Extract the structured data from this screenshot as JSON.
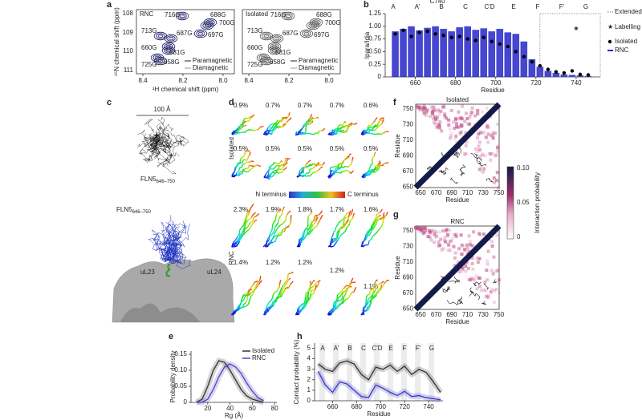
{
  "panel_labels": [
    "a",
    "b",
    "c",
    "d",
    "e",
    "f",
    "g",
    "h"
  ],
  "nmr": {
    "y_label": "¹⁵N chemical shift (ppm)",
    "x_label": "¹H chemical shift (ppm)",
    "y_ticks": [
      "108",
      "109",
      "110",
      "111"
    ],
    "legend": [
      "Paramagnetic",
      "Diamagnetic"
    ],
    "spectra": [
      {
        "title": "RNC",
        "x_ticks": [
          "8.4",
          "8.2",
          "8.0"
        ],
        "peaks": [
          "716G",
          "688G",
          "700G",
          "713G",
          "687G",
          "697G",
          "660G",
          "681G",
          "725G",
          "658G"
        ]
      },
      {
        "title": "Isolated",
        "x_ticks": [
          "8.4",
          "8.2",
          "8.0"
        ],
        "peaks": [
          "716G",
          "688G",
          "700G",
          "713G",
          "687G",
          "697G",
          "660G",
          "681G",
          "725G",
          "658G"
        ]
      }
    ]
  },
  "structure": {
    "scale": "100 Å",
    "name": "FLN5",
    "range": "646–750",
    "proteins": [
      "uL23",
      "uL24"
    ]
  },
  "ensembles": {
    "labels": [
      "Isolated",
      "RNC"
    ],
    "n_term": "N terminus",
    "c_term": "C terminus",
    "isolated_pct": [
      "0.9%",
      "0.7%",
      "0.7%",
      "0.7%",
      "0.6%",
      "0.5%",
      "0.5%",
      "0.5%",
      "0.5%",
      "0.5%"
    ],
    "rnc_pct": [
      "2.3%",
      "1.9%",
      "1.8%",
      "1.7%",
      "1.6%",
      "1.4%",
      "1.2%",
      "1.2%",
      "1.2%",
      "1.1%"
    ]
  },
  "maps": {
    "titles": [
      "Isolated",
      "RNC"
    ],
    "x_ticks": [
      "650",
      "670",
      "690",
      "710",
      "730",
      "750"
    ],
    "y_ticks": [
      "750",
      "730",
      "710",
      "690",
      "670",
      "650"
    ],
    "axis_label": "Residue",
    "colorbar": {
      "label": "Interaction probability",
      "ticks": [
        "0.10",
        "0.05",
        "0"
      ]
    }
  },
  "chart_data": [
    {
      "type": "bar",
      "x_label": "Residue",
      "y_label": "Ipara/Idia",
      "regions": [
        "A",
        "A'",
        "B",
        "C",
        "C'D",
        "E",
        "F",
        "F'",
        "G"
      ],
      "labelling_site": "C740",
      "legend": [
        "Extended peptide",
        "Labelling site"
      ],
      "x": [
        650,
        654,
        658,
        662,
        666,
        670,
        674,
        678,
        682,
        686,
        690,
        694,
        698,
        702,
        706,
        710,
        714,
        718,
        722,
        726,
        730,
        734,
        738,
        742,
        746
      ],
      "series": [
        {
          "name": "RNC",
          "type": "bar",
          "color": "#2626c8",
          "values": [
            0.9,
            0.95,
            1.0,
            0.92,
            0.97,
            1.0,
            0.95,
            0.9,
            0.98,
            1.0,
            0.93,
            0.96,
            0.9,
            0.95,
            0.88,
            0.85,
            0.7,
            0.35,
            0.2,
            0.12,
            0.08,
            0.05,
            0.04,
            0.03,
            0.02
          ]
        },
        {
          "name": "Isolated",
          "type": "scatter",
          "color": "#000000",
          "values": [
            0.85,
            0.92,
            0.8,
            0.88,
            0.9,
            0.85,
            0.82,
            0.78,
            0.8,
            0.75,
            0.72,
            0.78,
            0.7,
            0.65,
            0.6,
            0.5,
            0.4,
            0.3,
            0.22,
            0.15,
            0.1,
            0.08,
            0.12,
            0.05,
            0.04
          ]
        }
      ],
      "xlim": [
        645,
        752
      ],
      "xticks": [
        660,
        680,
        700,
        720,
        740
      ],
      "ylim": [
        0,
        1.25
      ],
      "yticks": [
        0,
        0.25,
        {
          "value": 0.5,
          "label": "0.50"
        },
        0.75,
        {
          "value": 1,
          "label": "1.00"
        },
        1.25
      ]
    },
    {
      "type": "line",
      "x_label": "Rg (Å)",
      "y_label": "Probability density",
      "x": [
        10,
        15,
        20,
        25,
        30,
        35,
        40,
        45,
        50,
        55,
        60,
        65,
        70
      ],
      "series": [
        {
          "name": "Isolated",
          "color": "#333333",
          "values": [
            0,
            0.01,
            0.05,
            0.1,
            0.13,
            0.125,
            0.1,
            0.07,
            0.04,
            0.02,
            0.01,
            0.005,
            0
          ]
        },
        {
          "name": "RNC",
          "color": "#5a3fc0",
          "values": [
            0,
            0,
            0.01,
            0.04,
            0.08,
            0.11,
            0.12,
            0.11,
            0.09,
            0.06,
            0.035,
            0.015,
            0.005
          ]
        }
      ],
      "xlim": [
        5,
        82
      ],
      "xticks": [
        20,
        40,
        60,
        80
      ],
      "ylim": [
        0,
        0.16
      ],
      "yticks": [
        0,
        0.05,
        {
          "value": 0.1,
          "label": "0.10"
        },
        0.15
      ]
    },
    {
      "type": "line",
      "x_label": "Residue",
      "y_label": "Contact probability (%)",
      "regions": [
        "A",
        "A'",
        "B",
        "C",
        "C'D",
        "E",
        "F",
        "F'",
        "G"
      ],
      "x": [
        648,
        654,
        660,
        666,
        672,
        678,
        684,
        690,
        696,
        702,
        708,
        714,
        720,
        726,
        732,
        738,
        744,
        750
      ],
      "series": [
        {
          "color": "#333333",
          "values": [
            3.5,
            3.0,
            2.8,
            3.6,
            3.8,
            3.5,
            2.5,
            2.0,
            3.2,
            3.0,
            3.4,
            2.8,
            3.3,
            2.5,
            3.0,
            2.7,
            1.8,
            0.8
          ]
        },
        {
          "color": "#3a36c8",
          "values": [
            2.8,
            1.5,
            0.8,
            1.8,
            1.6,
            1.0,
            0.4,
            0.3,
            1.5,
            1.2,
            0.8,
            0.5,
            0.9,
            0.4,
            0.5,
            0.3,
            0.2,
            0.1
          ]
        }
      ],
      "xlim": [
        645,
        752
      ],
      "xticks": [
        660,
        680,
        700,
        720,
        740
      ],
      "ylim": [
        0,
        5.5
      ],
      "yticks": [
        0,
        1,
        2,
        3,
        4,
        5
      ]
    }
  ]
}
